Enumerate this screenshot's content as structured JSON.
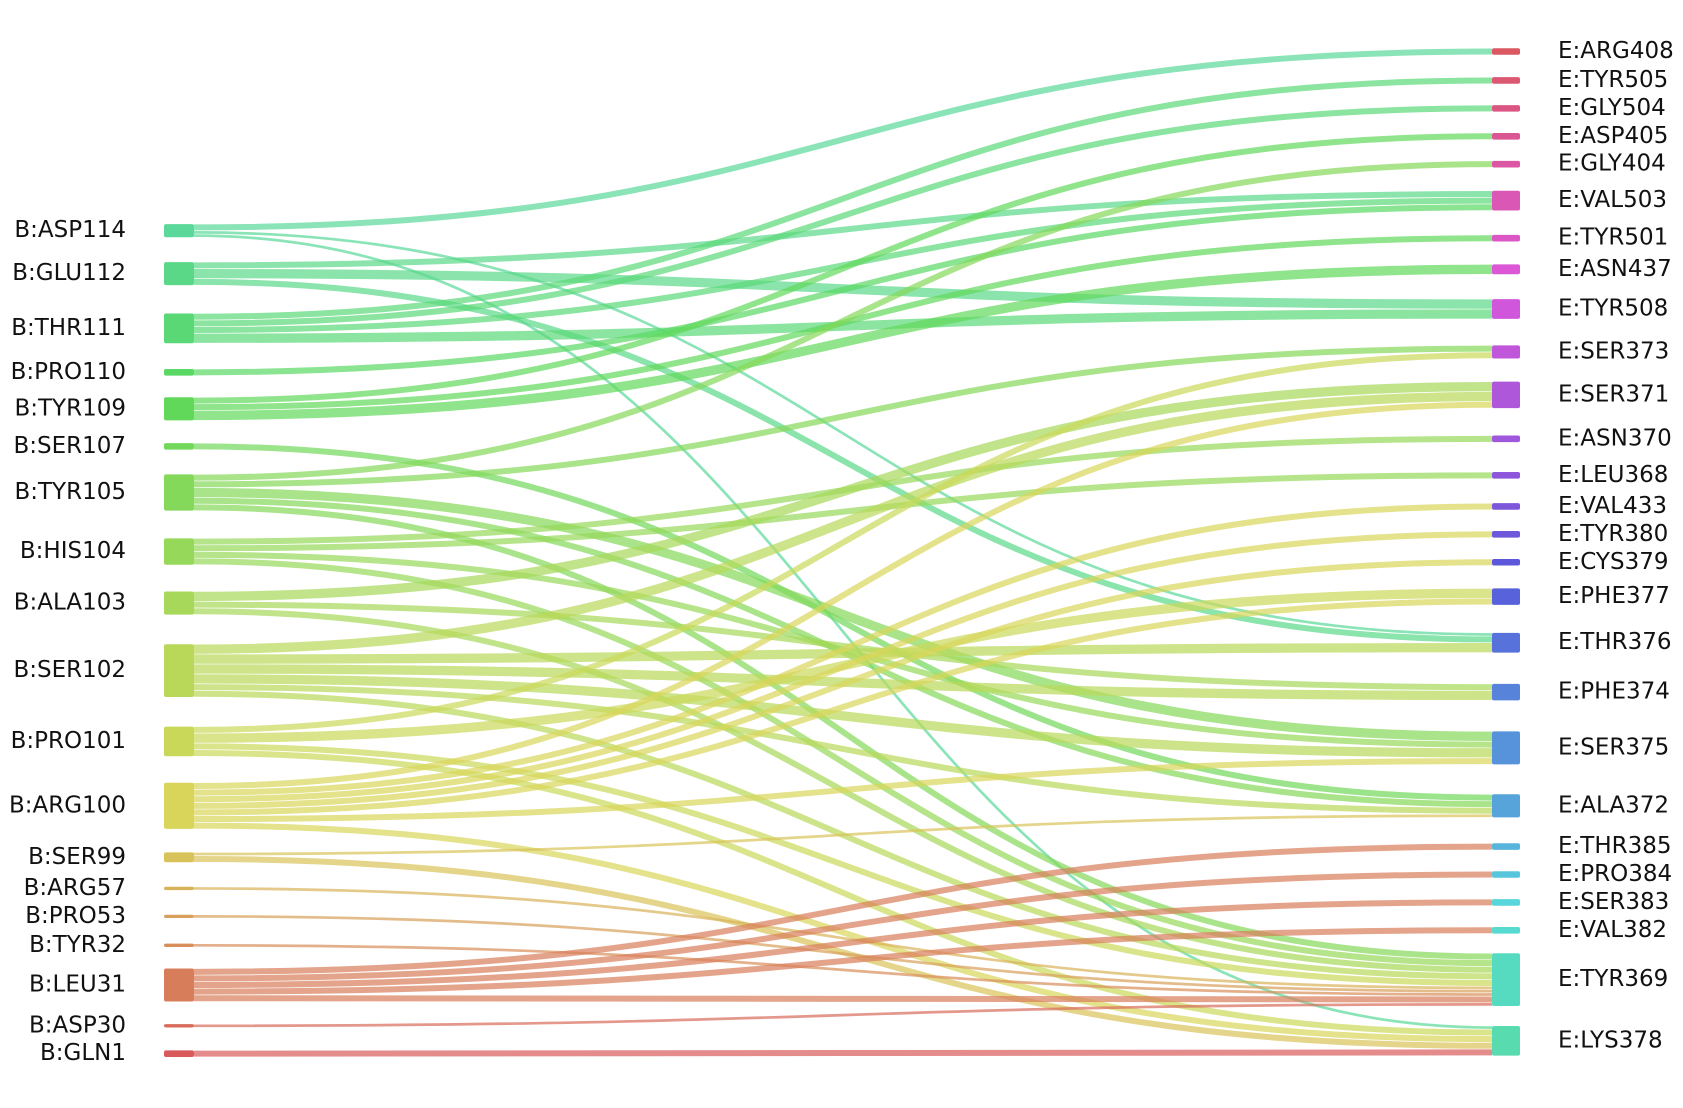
{
  "chart_data": {
    "type": "sankey",
    "left_nodes": [
      "B:ASP114",
      "B:GLU112",
      "B:THR111",
      "B:PRO110",
      "B:TYR109",
      "B:SER107",
      "B:TYR105",
      "B:HIS104",
      "B:ALA103",
      "B:SER102",
      "B:PRO101",
      "B:ARG100",
      "B:SER99",
      "B:ARG57",
      "B:PRO53",
      "B:TYR32",
      "B:LEU31",
      "B:ASP30",
      "B:GLN1"
    ],
    "right_nodes": [
      "E:ARG408",
      "E:TYR505",
      "E:GLY504",
      "E:ASP405",
      "E:GLY404",
      "E:VAL503",
      "E:TYR501",
      "E:ASN437",
      "E:TYR508",
      "E:SER373",
      "E:SER371",
      "E:ASN370",
      "E:LEU368",
      "E:VAL433",
      "E:TYR380",
      "E:CYS379",
      "E:PHE377",
      "E:THR376",
      "E:PHE374",
      "E:SER375",
      "E:ALA372",
      "E:THR385",
      "E:PRO384",
      "E:SER383",
      "E:VAL382",
      "E:TYR369",
      "E:LYS378"
    ],
    "links": [
      {
        "source": 0,
        "target": 0,
        "value": 2
      },
      {
        "source": 0,
        "target": 17,
        "value": 1
      },
      {
        "source": 0,
        "target": 26,
        "value": 1
      },
      {
        "source": 1,
        "target": 5,
        "value": 2
      },
      {
        "source": 1,
        "target": 8,
        "value": 3
      },
      {
        "source": 1,
        "target": 17,
        "value": 2
      },
      {
        "source": 2,
        "target": 1,
        "value": 2
      },
      {
        "source": 2,
        "target": 2,
        "value": 2
      },
      {
        "source": 2,
        "target": 5,
        "value": 2
      },
      {
        "source": 2,
        "target": 8,
        "value": 3
      },
      {
        "source": 3,
        "target": 5,
        "value": 2
      },
      {
        "source": 4,
        "target": 3,
        "value": 2
      },
      {
        "source": 4,
        "target": 6,
        "value": 2
      },
      {
        "source": 4,
        "target": 7,
        "value": 3
      },
      {
        "source": 5,
        "target": 20,
        "value": 2
      },
      {
        "source": 6,
        "target": 4,
        "value": 2
      },
      {
        "source": 6,
        "target": 9,
        "value": 2
      },
      {
        "source": 6,
        "target": 19,
        "value": 3
      },
      {
        "source": 6,
        "target": 20,
        "value": 2
      },
      {
        "source": 6,
        "target": 25,
        "value": 2
      },
      {
        "source": 7,
        "target": 11,
        "value": 2
      },
      {
        "source": 7,
        "target": 12,
        "value": 2
      },
      {
        "source": 7,
        "target": 19,
        "value": 2
      },
      {
        "source": 7,
        "target": 25,
        "value": 2
      },
      {
        "source": 8,
        "target": 10,
        "value": 3
      },
      {
        "source": 8,
        "target": 18,
        "value": 2
      },
      {
        "source": 8,
        "target": 25,
        "value": 2
      },
      {
        "source": 9,
        "target": 10,
        "value": 3
      },
      {
        "source": 9,
        "target": 17,
        "value": 3
      },
      {
        "source": 9,
        "target": 18,
        "value": 3
      },
      {
        "source": 9,
        "target": 19,
        "value": 3
      },
      {
        "source": 9,
        "target": 20,
        "value": 2
      },
      {
        "source": 9,
        "target": 25,
        "value": 2
      },
      {
        "source": 10,
        "target": 9,
        "value": 2
      },
      {
        "source": 10,
        "target": 16,
        "value": 3
      },
      {
        "source": 10,
        "target": 25,
        "value": 2
      },
      {
        "source": 10,
        "target": 26,
        "value": 2
      },
      {
        "source": 11,
        "target": 13,
        "value": 2
      },
      {
        "source": 11,
        "target": 14,
        "value": 2
      },
      {
        "source": 11,
        "target": 15,
        "value": 2
      },
      {
        "source": 11,
        "target": 10,
        "value": 2
      },
      {
        "source": 11,
        "target": 16,
        "value": 2
      },
      {
        "source": 11,
        "target": 19,
        "value": 2
      },
      {
        "source": 11,
        "target": 26,
        "value": 2
      },
      {
        "source": 12,
        "target": 20,
        "value": 1
      },
      {
        "source": 12,
        "target": 26,
        "value": 2
      },
      {
        "source": 13,
        "target": 25,
        "value": 1
      },
      {
        "source": 14,
        "target": 25,
        "value": 1
      },
      {
        "source": 15,
        "target": 25,
        "value": 1
      },
      {
        "source": 16,
        "target": 21,
        "value": 2
      },
      {
        "source": 16,
        "target": 22,
        "value": 2
      },
      {
        "source": 16,
        "target": 23,
        "value": 2
      },
      {
        "source": 16,
        "target": 24,
        "value": 2
      },
      {
        "source": 16,
        "target": 25,
        "value": 2
      },
      {
        "source": 17,
        "target": 25,
        "value": 1
      },
      {
        "source": 18,
        "target": 26,
        "value": 2
      }
    ]
  }
}
